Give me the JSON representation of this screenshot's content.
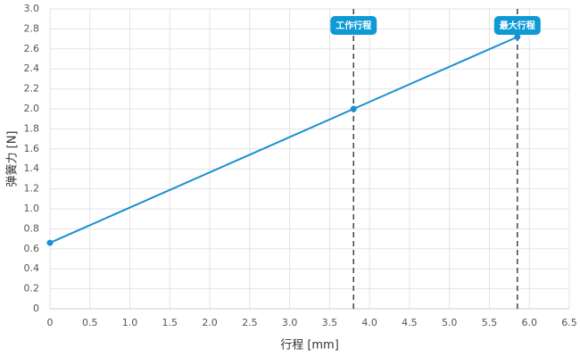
{
  "chart_data": {
    "type": "line",
    "x_label": "行程 [mm]",
    "y_label": "弹簧力 [N]",
    "x": [
      0,
      3.8,
      5.85
    ],
    "series": [
      {
        "color": "#1a8fd1",
        "values": [
          0.66,
          2.0,
          2.72
        ]
      }
    ],
    "xlim": [
      0,
      6.5
    ],
    "xticks": [
      0,
      0.5,
      {
        "value": 1,
        "label": "1.0"
      },
      1.5,
      {
        "value": 2,
        "label": "2.0"
      },
      2.5,
      {
        "value": 3,
        "label": "3.0"
      },
      3.5,
      {
        "value": 4,
        "label": "4.0"
      },
      4.5,
      {
        "value": 5,
        "label": "5.0"
      },
      5.5,
      {
        "value": 6,
        "label": "6.0"
      },
      6.5
    ],
    "ylim": [
      0,
      3
    ],
    "yticks": [
      0,
      0.2,
      0.4,
      0.6,
      0.8,
      {
        "value": 1,
        "label": "1.0"
      },
      1.2,
      1.4,
      1.6,
      1.8,
      {
        "value": 2,
        "label": "2.0"
      },
      2.2,
      2.4,
      2.6,
      2.8,
      {
        "value": 3,
        "label": "3.0"
      }
    ],
    "grid": true,
    "annotations": [
      {
        "x": 3.8,
        "label": "工作行程"
      },
      {
        "x": 5.85,
        "label": "最大行程"
      }
    ],
    "annotation_color": "#0e9ad4"
  }
}
